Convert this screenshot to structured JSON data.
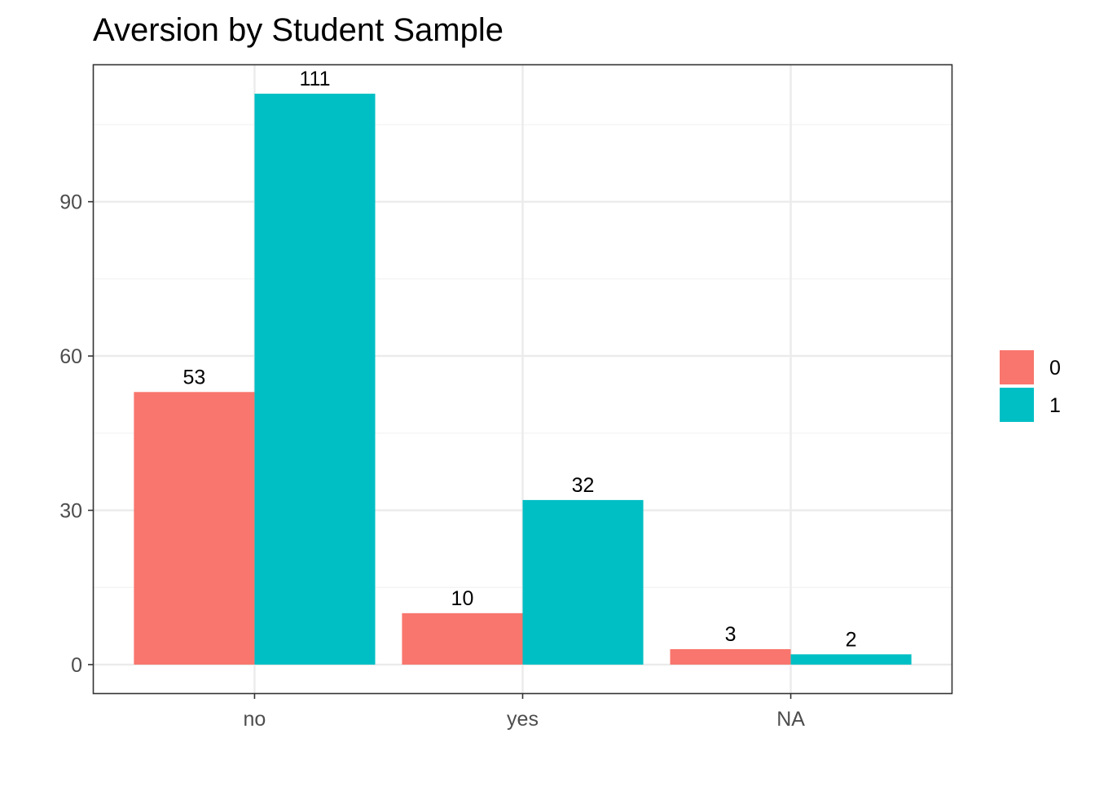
{
  "chart_data": {
    "type": "bar",
    "title": "Aversion by Student Sample",
    "xlabel": "",
    "ylabel": "",
    "categories": [
      "no",
      "yes",
      "NA"
    ],
    "series": [
      {
        "name": "0",
        "values": [
          53,
          10,
          3
        ],
        "color": "#F8766D"
      },
      {
        "name": "1",
        "values": [
          111,
          32,
          2
        ],
        "color": "#00BFC4"
      }
    ],
    "ylim": [
      -5.55,
      116.55
    ],
    "yticks": [
      0,
      30,
      60,
      90
    ],
    "ytick_labels": [
      "0",
      "30",
      "60",
      "90"
    ],
    "minor_yticks": [
      15,
      45,
      75,
      105
    ],
    "data_labels": true,
    "grid": true,
    "legend_position": "right",
    "bar_style": "dodge",
    "colors": {
      "panel_border": "#333333",
      "grid_major": "#ebebeb",
      "grid_minor": "#f2f2f2",
      "tick_text": "#4d4d4d"
    }
  }
}
